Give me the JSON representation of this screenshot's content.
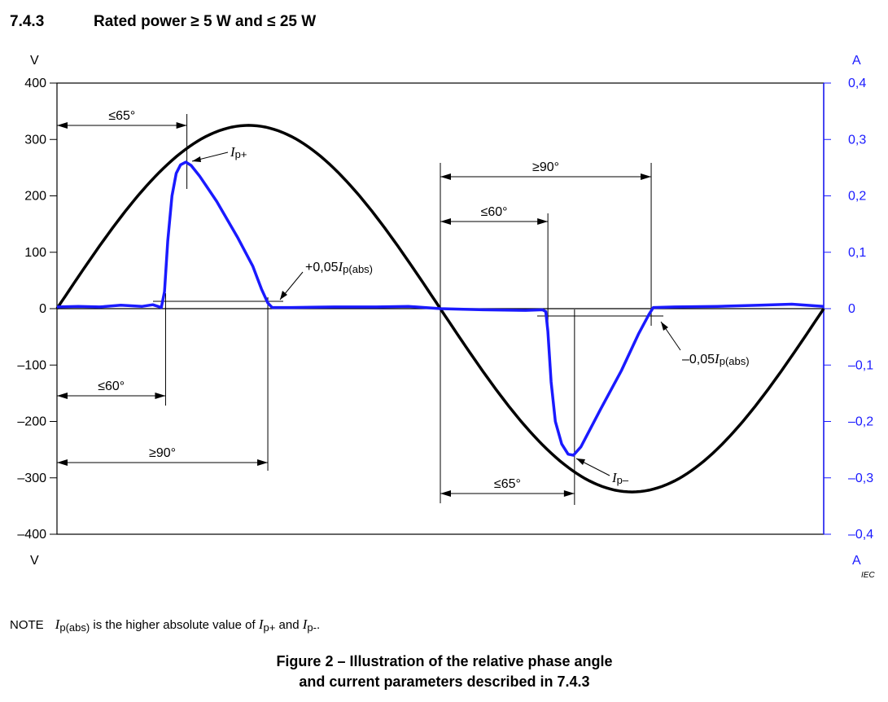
{
  "heading": {
    "number": "7.4.3",
    "text": "Rated power ≥ 5 W and ≤ 25 W"
  },
  "chart_data": {
    "type": "line",
    "x_unit": "degrees (one mains period)",
    "xlim": [
      0,
      360
    ],
    "left_axis": {
      "unit_label": "V",
      "ylim": [
        -400,
        400
      ],
      "ticks": [
        "400",
        "300",
        "200",
        "100",
        "0",
        "–100",
        "–200",
        "–300",
        "–400"
      ],
      "tick_values": [
        400,
        300,
        200,
        100,
        0,
        -100,
        -200,
        -300,
        -400
      ]
    },
    "right_axis": {
      "unit_label": "A",
      "ylim": [
        -0.4,
        0.4
      ],
      "ticks": [
        "0,4",
        "0,3",
        "0,2",
        "0,1",
        "0",
        "–0,1",
        "–0,2",
        "–0,3",
        "–0,4"
      ],
      "tick_values": [
        0.4,
        0.3,
        0.2,
        0.1,
        0,
        -0.1,
        -0.2,
        -0.3,
        -0.4
      ]
    },
    "series": [
      {
        "name": "voltage",
        "axis": "left",
        "color": "#000000",
        "shape": "sine",
        "amplitude": 325
      },
      {
        "name": "current",
        "axis": "right",
        "color": "#1a1aff",
        "points": [
          [
            0,
            0.003
          ],
          [
            10,
            0.004
          ],
          [
            20,
            0.003
          ],
          [
            30,
            0.006
          ],
          [
            40,
            0.004
          ],
          [
            45,
            0.007
          ],
          [
            49,
            0.002
          ],
          [
            50.5,
            0.03
          ],
          [
            52,
            0.12
          ],
          [
            54,
            0.2
          ],
          [
            56,
            0.24
          ],
          [
            58,
            0.255
          ],
          [
            60.5,
            0.26
          ],
          [
            63,
            0.254
          ],
          [
            67,
            0.235
          ],
          [
            75,
            0.19
          ],
          [
            85,
            0.125
          ],
          [
            92,
            0.075
          ],
          [
            96,
            0.035
          ],
          [
            99,
            0.01
          ],
          [
            101,
            0.002
          ],
          [
            110,
            0.002
          ],
          [
            130,
            0.003
          ],
          [
            150,
            0.003
          ],
          [
            165,
            0.004
          ],
          [
            180,
            0
          ],
          [
            200,
            -0.002
          ],
          [
            220,
            -0.003
          ],
          [
            228,
            -0.002
          ],
          [
            229.5,
            -0.005
          ],
          [
            230.5,
            -0.04
          ],
          [
            232,
            -0.13
          ],
          [
            234,
            -0.2
          ],
          [
            237,
            -0.24
          ],
          [
            240,
            -0.258
          ],
          [
            242.5,
            -0.26
          ],
          [
            246,
            -0.245
          ],
          [
            255,
            -0.18
          ],
          [
            265,
            -0.11
          ],
          [
            273,
            -0.045
          ],
          [
            278,
            -0.01
          ],
          [
            280,
            0.002
          ],
          [
            290,
            0.003
          ],
          [
            310,
            0.004
          ],
          [
            330,
            0.006
          ],
          [
            345,
            0.008
          ],
          [
            360,
            0.004
          ]
        ]
      }
    ],
    "annotations": {
      "ip_plus": {
        "sym": "I",
        "sub": "p+"
      },
      "ip_minus": {
        "sym": "I",
        "sub": "p–"
      },
      "plus_threshold": {
        "prefix": "+0,05",
        "sym": "I",
        "sub": "p(abs)"
      },
      "minus_threshold": {
        "prefix": "–0,05",
        "sym": "I",
        "sub": "p(abs)"
      },
      "dimensions": [
        {
          "label": "≤65°",
          "from": 0,
          "to": 61
        },
        {
          "label": "≤60°",
          "from": 0,
          "to": 51
        },
        {
          "label": "≥90°",
          "from": 0,
          "to": 99
        },
        {
          "label": "≥90°",
          "from": 180,
          "to": 279
        },
        {
          "label": "≤60°",
          "from": 180,
          "to": 230.5
        },
        {
          "label": "≤65°",
          "from": 180,
          "to": 243
        }
      ]
    },
    "watermark": "IEC"
  },
  "note": {
    "label": "NOTE",
    "sym1": "I",
    "sub1": "p(abs)",
    "text1": " is the higher absolute value of ",
    "sym2": "I",
    "sub2": "p+",
    "text2": " and ",
    "sym3": "I",
    "sub3": "p-",
    "text3": "."
  },
  "caption": {
    "line1": "Figure 2 – Illustration of the relative phase angle",
    "line2": "and current parameters described in 7.4.3"
  }
}
